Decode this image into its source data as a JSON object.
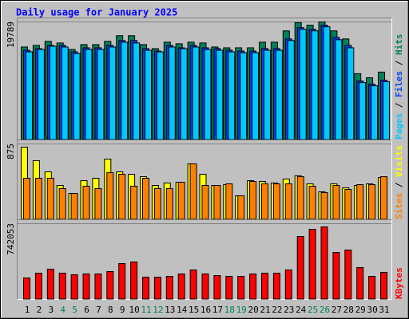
{
  "chart_data": [
    {
      "type": "bar",
      "title": "Daily usage for January 2025",
      "legend_separator": " / ",
      "ylim": [
        0,
        19789
      ],
      "yticks": [
        19789
      ],
      "series": [
        {
          "name": "Hits",
          "color": "#00805c",
          "values": [
            15585,
            15855,
            16530,
            16260,
            15175,
            15990,
            15990,
            16530,
            17480,
            17480,
            15990,
            15310,
            16395,
            16125,
            16395,
            16260,
            15585,
            15450,
            15450,
            15450,
            16395,
            16395,
            18290,
            19650,
            19240,
            19789,
            18290,
            16940,
            11110,
            10435,
            11380
          ]
        },
        {
          "name": "Files",
          "color": "#0040ff",
          "values": [
            15040,
            15312,
            15854,
            15854,
            14770,
            15447,
            15447,
            15854,
            16667,
            16667,
            15312,
            14905,
            15854,
            15447,
            15854,
            15447,
            15312,
            15040,
            14905,
            14905,
            15312,
            15312,
            16938,
            18835,
            18564,
            19241,
            17209,
            15854,
            9892,
            9350,
            10027
          ]
        },
        {
          "name": "Pages",
          "color": "#00c8ff",
          "values": [
            14770,
            15176,
            15718,
            15583,
            14499,
            15176,
            15176,
            15583,
            16396,
            16260,
            15041,
            14770,
            15583,
            15312,
            15583,
            15176,
            15041,
            14770,
            14634,
            14634,
            15041,
            15041,
            16667,
            18564,
            18293,
            18970,
            16802,
            15447,
            9621,
            9079,
            9756
          ]
        }
      ]
    },
    {
      "type": "bar",
      "legend_separator": " / ",
      "ylim": [
        0,
        875
      ],
      "yticks": [
        875
      ],
      "series": [
        {
          "name": "Visits",
          "color": "#ffff00",
          "values": [
            838,
            682,
            553,
            396,
            304,
            451,
            479,
            700,
            553,
            525,
            497,
            396,
            424,
            433,
            645,
            525,
            396,
            405,
            276,
            451,
            442,
            424,
            470,
            507,
            414,
            322,
            414,
            368,
            396,
            414,
            488
          ]
        },
        {
          "name": "Sites",
          "color": "#ff8000",
          "values": [
            479,
            479,
            479,
            359,
            304,
            387,
            359,
            543,
            525,
            387,
            479,
            359,
            359,
            433,
            645,
            396,
            396,
            414,
            276,
            442,
            414,
            414,
            414,
            497,
            387,
            313,
            396,
            350,
            405,
            405,
            497
          ]
        }
      ]
    },
    {
      "type": "bar",
      "ylim": [
        0,
        742053
      ],
      "yticks": [
        742053
      ],
      "categories": [
        "1",
        "2",
        "3",
        "4",
        "5",
        "6",
        "7",
        "8",
        "9",
        "10",
        "11",
        "12",
        "13",
        "14",
        "15",
        "16",
        "17",
        "18",
        "19",
        "20",
        "21",
        "22",
        "23",
        "24",
        "25",
        "26",
        "27",
        "28",
        "29",
        "30",
        "31"
      ],
      "category_colors": [
        "#000000",
        "#000000",
        "#000000",
        "#00805c",
        "#00805c",
        "#000000",
        "#000000",
        "#000000",
        "#000000",
        "#000000",
        "#00805c",
        "#00805c",
        "#000000",
        "#000000",
        "#000000",
        "#000000",
        "#000000",
        "#00805c",
        "#00805c",
        "#000000",
        "#000000",
        "#000000",
        "#000000",
        "#000000",
        "#00805c",
        "#00805c",
        "#000000",
        "#000000",
        "#000000",
        "#000000",
        "#000000"
      ],
      "series": [
        {
          "name": "KBytes",
          "color": "#ff0000",
          "values": [
            210897,
            257763,
            296818,
            257763,
            242141,
            249952,
            249952,
            273385,
            351495,
            367117,
            218708,
            218708,
            226519,
            249952,
            289007,
            249952,
            234330,
            226519,
            226519,
            249952,
            257763,
            257763,
            289007,
            617069,
            687368,
            710801,
            460849,
            484282,
            312440,
            226519,
            265574
          ]
        }
      ]
    }
  ]
}
